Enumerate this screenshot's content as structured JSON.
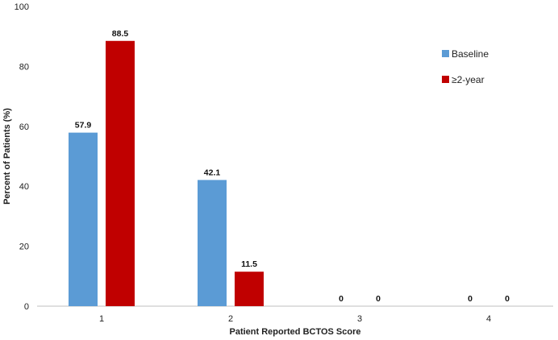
{
  "chart_data": {
    "type": "bar",
    "categories": [
      "1",
      "2",
      "3",
      "4"
    ],
    "series": [
      {
        "name": "Baseline",
        "values": [
          57.9,
          42.1,
          0,
          0
        ],
        "color": "#5B9BD5"
      },
      {
        "name": "≥2-year",
        "values": [
          88.5,
          11.5,
          0,
          0
        ],
        "color": "#C00000"
      }
    ],
    "data_labels": [
      [
        "57.9",
        "42.1",
        "0",
        "0"
      ],
      [
        "88.5",
        "11.5",
        "0",
        "0"
      ]
    ],
    "xlabel": "Patient Reported BCTOS Score",
    "ylabel": "Percent of Patients (%)",
    "ylim": [
      0,
      100
    ],
    "yticks": [
      0,
      20,
      40,
      60,
      80,
      100
    ],
    "grid": false,
    "legend_position": "top-right"
  }
}
